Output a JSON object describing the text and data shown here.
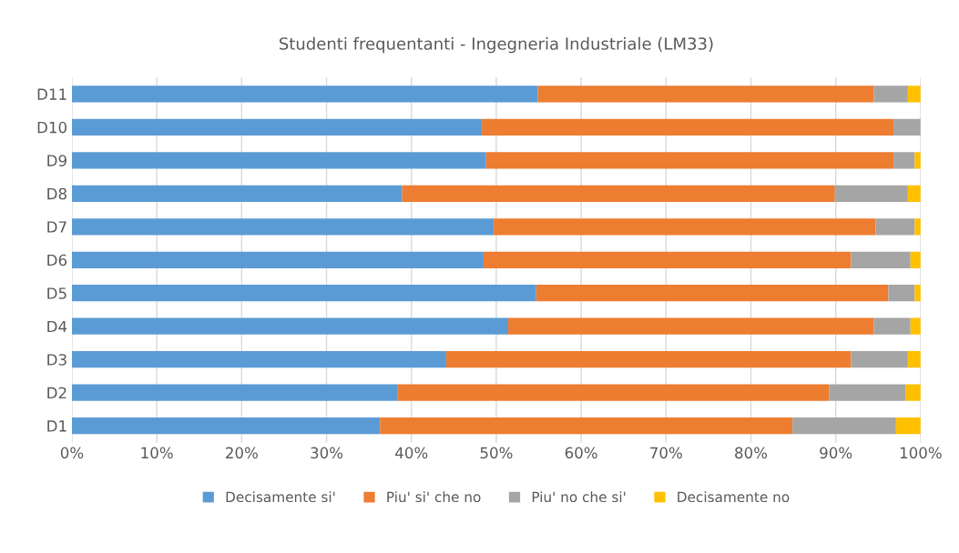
{
  "chart_data": {
    "type": "bar",
    "orientation": "horizontal",
    "stacked": true,
    "title": "Studenti frequentanti - Ingegneria Industriale (LM33)",
    "categories": [
      "D11",
      "D10",
      "D9",
      "D8",
      "D7",
      "D6",
      "D5",
      "D4",
      "D3",
      "D2",
      "D1"
    ],
    "series": [
      {
        "name": "Decisamente si'",
        "color": "#5b9bd5",
        "values": [
          54.9,
          48.3,
          48.8,
          38.9,
          49.7,
          48.5,
          54.7,
          51.4,
          44.1,
          38.4,
          36.3
        ]
      },
      {
        "name": "Piu' si' che no",
        "color": "#ed7d31",
        "values": [
          39.6,
          48.5,
          48.0,
          51.0,
          45.0,
          43.3,
          41.5,
          43.1,
          47.7,
          50.8,
          48.6
        ]
      },
      {
        "name": "Piu' no che si'",
        "color": "#a5a5a5",
        "values": [
          4.0,
          3.2,
          2.5,
          8.6,
          4.6,
          7.0,
          3.1,
          4.3,
          6.7,
          9.0,
          12.2
        ]
      },
      {
        "name": "Decisamente no",
        "color": "#ffc000",
        "values": [
          1.5,
          0,
          0.7,
          1.5,
          0.7,
          1.2,
          0.7,
          1.2,
          1.5,
          1.8,
          2.9
        ]
      }
    ],
    "xlim": [
      0,
      100
    ],
    "xticks": [
      {
        "value": 0,
        "label": "0%"
      },
      {
        "value": 10,
        "label": "10%"
      },
      {
        "value": 20,
        "label": "20%"
      },
      {
        "value": 30,
        "label": "30%"
      },
      {
        "value": 40,
        "label": "40%"
      },
      {
        "value": 50,
        "label": "50%"
      },
      {
        "value": 60,
        "label": "60%"
      },
      {
        "value": 70,
        "label": "70%"
      },
      {
        "value": 80,
        "label": "80%"
      },
      {
        "value": 90,
        "label": "90%"
      },
      {
        "value": 100,
        "label": "100%"
      }
    ],
    "grid": "x",
    "legend": "bottom"
  }
}
